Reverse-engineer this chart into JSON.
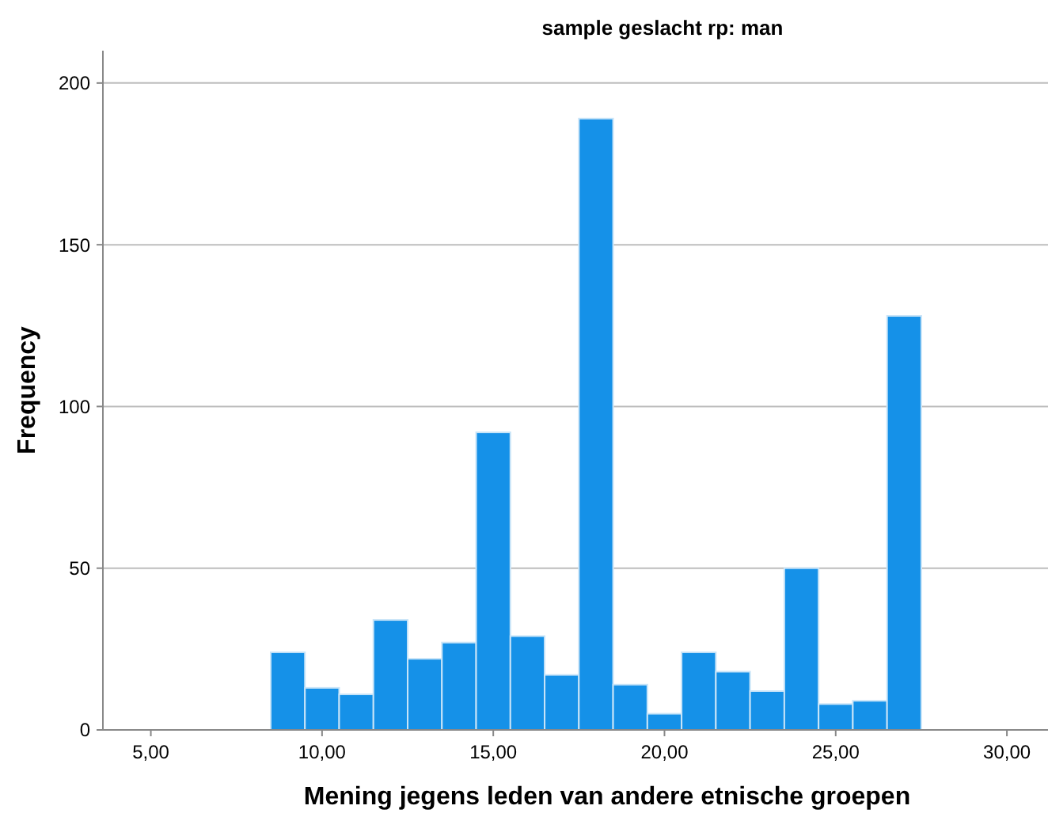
{
  "chart_data": {
    "type": "histogram",
    "title": "sample geslacht rp: man",
    "xlabel": "Mening jegens leden van andere etnische groepen",
    "ylabel": "Frequency",
    "bins": [
      8.5,
      9.5,
      10.5,
      11.5,
      12.5,
      13.5,
      14.5,
      15.5,
      16.5,
      17.5,
      18.5,
      19.5,
      20.5,
      21.5,
      22.5,
      23.5,
      24.5,
      25.5,
      26.5,
      27.5
    ],
    "values": [
      24,
      13,
      11,
      34,
      22,
      27,
      92,
      29,
      17,
      189,
      14,
      5,
      24,
      18,
      12,
      50,
      8,
      9,
      128
    ],
    "color": "#1591e8",
    "xlim": [
      3.6,
      31.2
    ],
    "xticks": [
      {
        "value": 5,
        "label": "5,00"
      },
      {
        "value": 10,
        "label": "10,00"
      },
      {
        "value": 15,
        "label": "15,00"
      },
      {
        "value": 20,
        "label": "20,00"
      },
      {
        "value": 25,
        "label": "25,00"
      },
      {
        "value": 30,
        "label": "30,00"
      }
    ],
    "ylim": [
      0,
      210
    ],
    "yticks": [
      0,
      50,
      100,
      150,
      200
    ],
    "grid": "y"
  }
}
